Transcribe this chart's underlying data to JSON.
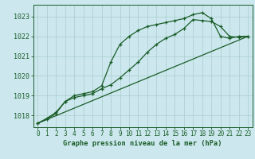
{
  "bg_color": "#cce8ee",
  "grid_color": "#aacccc",
  "line_color": "#1a5c28",
  "title": "Graphe pression niveau de la mer (hPa)",
  "xlim": [
    -0.5,
    23.5
  ],
  "ylim": [
    1017.4,
    1023.6
  ],
  "yticks": [
    1018,
    1019,
    1020,
    1021,
    1022,
    1023
  ],
  "xticks": [
    0,
    1,
    2,
    3,
    4,
    5,
    6,
    7,
    8,
    9,
    10,
    11,
    12,
    13,
    14,
    15,
    16,
    17,
    18,
    19,
    20,
    21,
    22,
    23
  ],
  "series": [
    {
      "x": [
        0,
        1,
        2,
        3,
        4,
        5,
        6,
        7,
        8,
        9,
        10,
        11,
        12,
        13,
        14,
        15,
        16,
        17,
        18,
        19,
        20,
        21,
        22,
        23
      ],
      "y": [
        1017.6,
        1017.8,
        1018.1,
        1018.7,
        1019.0,
        1019.1,
        1019.2,
        1019.5,
        1020.7,
        1021.6,
        1022.0,
        1022.3,
        1022.5,
        1022.6,
        1022.7,
        1022.8,
        1022.9,
        1023.1,
        1023.2,
        1022.9,
        1022.0,
        1021.9,
        1022.0,
        1022.0
      ],
      "marker": "+",
      "ms": 3.5,
      "lw": 0.9
    },
    {
      "x": [
        0,
        1,
        2,
        3,
        4,
        5,
        6,
        7,
        8,
        9,
        10,
        11,
        12,
        13,
        14,
        15,
        16,
        17,
        18,
        19,
        20,
        21,
        22,
        23
      ],
      "y": [
        1017.6,
        1017.85,
        1018.15,
        1018.7,
        1018.9,
        1019.0,
        1019.1,
        1019.35,
        1019.55,
        1019.9,
        1020.3,
        1020.7,
        1021.2,
        1021.6,
        1021.9,
        1022.1,
        1022.4,
        1022.85,
        1022.8,
        1022.75,
        1022.5,
        1022.0,
        1021.95,
        1022.0
      ],
      "marker": "+",
      "ms": 3.5,
      "lw": 0.9
    },
    {
      "x": [
        0,
        23
      ],
      "y": [
        1017.6,
        1022.0
      ],
      "marker": null,
      "ms": 0,
      "lw": 0.9
    }
  ]
}
